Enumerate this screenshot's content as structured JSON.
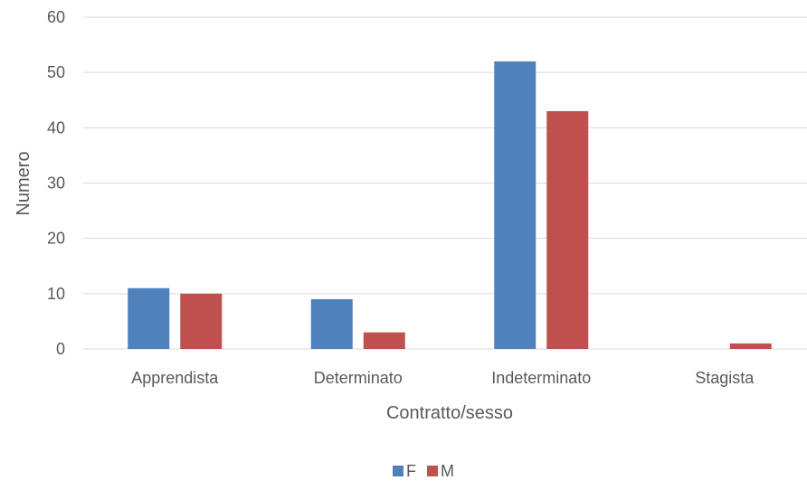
{
  "chart_data": {
    "type": "bar",
    "title": "",
    "xlabel": "Contratto/sesso",
    "ylabel": "Numero",
    "categories": [
      "Apprendista",
      "Determinato",
      "Indeterminato",
      "Stagista"
    ],
    "series": [
      {
        "name": "F",
        "color": "#4F81BD",
        "values": [
          11,
          9,
          52,
          0
        ]
      },
      {
        "name": "M",
        "color": "#C0504D",
        "values": [
          10,
          3,
          43,
          1
        ]
      }
    ],
    "ylim": [
      0,
      60
    ],
    "yticks": [
      0,
      10,
      20,
      30,
      40,
      50,
      60
    ],
    "grid": true,
    "legend": "bottom",
    "gridline_color": "#D9D9D9"
  }
}
